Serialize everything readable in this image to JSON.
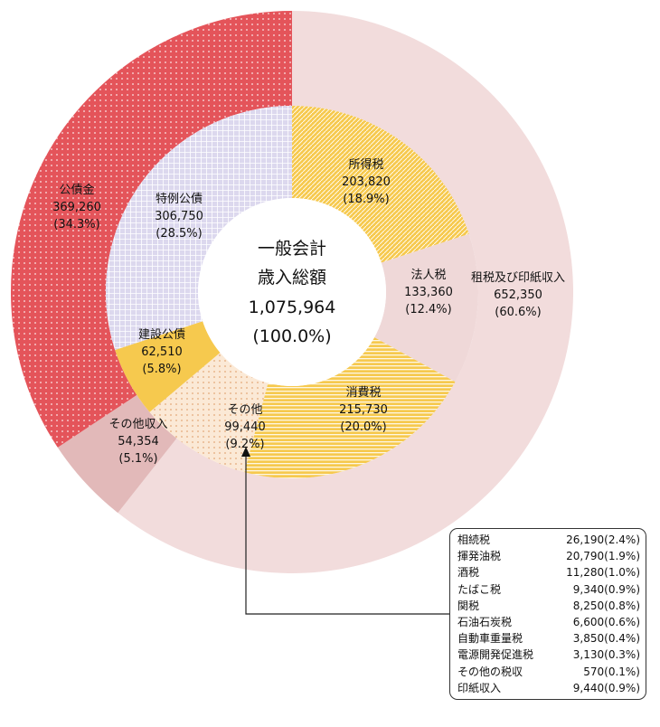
{
  "chart_data": {
    "type": "donut",
    "center": {
      "line1": "一般会計",
      "line2": "歳入総額",
      "line3": "1,075,964",
      "line4": "(100.0%)"
    },
    "outer_ring": [
      {
        "name": "租税及び印紙収入",
        "value_text": "652,350",
        "pct_text": "(60.6%)",
        "value": 652350,
        "percent": 60.6,
        "color": "#f2dcdc"
      },
      {
        "name": "その他収入",
        "value_text": "54,354",
        "pct_text": "(5.1%)",
        "value": 54354,
        "percent": 5.1,
        "color": "#e2b9b9"
      },
      {
        "name": "公債金",
        "value_text": "369,260",
        "pct_text": "(34.3%)",
        "value": 369260,
        "percent": 34.3,
        "color": "#e4545a"
      }
    ],
    "inner_ring": [
      {
        "name": "所得税",
        "value_text": "203,820",
        "pct_text": "(18.9%)",
        "value": 203820,
        "percent": 18.9,
        "color": "#f6c94e"
      },
      {
        "name": "法人税",
        "value_text": "133,360",
        "pct_text": "(12.4%)",
        "value": 133360,
        "percent": 12.4,
        "color": "#efd8d8"
      },
      {
        "name": "消費税",
        "value_text": "215,730",
        "pct_text": "(20.0%)",
        "value": 215730,
        "percent": 20.0,
        "color": "#f6c94e"
      },
      {
        "name": "その他",
        "value_text": "99,440",
        "pct_text": "(9.2%)",
        "value": 99440,
        "percent": 9.2,
        "color": "#fbe9d6"
      },
      {
        "name": "建設公債",
        "value_text": "62,510",
        "pct_text": "(5.8%)",
        "value": 62510,
        "percent": 5.8,
        "color": "#f6c94e"
      },
      {
        "name": "特例公債",
        "value_text": "306,750",
        "pct_text": "(28.5%)",
        "value": 306750,
        "percent": 28.5,
        "color": "#dcd8ee"
      }
    ],
    "breakdown": [
      {
        "name": "相続税",
        "value_text": "26,190(2.4%)",
        "value": 26190,
        "percent": 2.4
      },
      {
        "name": "揮発油税",
        "value_text": "20,790(1.9%)",
        "value": 20790,
        "percent": 1.9
      },
      {
        "name": "酒税",
        "value_text": "11,280(1.0%)",
        "value": 11280,
        "percent": 1.0
      },
      {
        "name": "たばこ税",
        "value_text": "9,340(0.9%)",
        "value": 9340,
        "percent": 0.9
      },
      {
        "name": "関税",
        "value_text": "8,250(0.8%)",
        "value": 8250,
        "percent": 0.8
      },
      {
        "name": "石油石炭税",
        "value_text": "6,600(0.6%)",
        "value": 6600,
        "percent": 0.6
      },
      {
        "name": "自動車重量税",
        "value_text": "3,850(0.4%)",
        "value": 3850,
        "percent": 0.4
      },
      {
        "name": "電源開発促進税",
        "value_text": "3,130(0.3%)",
        "value": 3130,
        "percent": 0.3
      },
      {
        "name": "その他の税収",
        "value_text": "570(0.1%)",
        "value": 570,
        "percent": 0.1
      },
      {
        "name": "印紙収入",
        "value_text": "9,440(0.9%)",
        "value": 9440,
        "percent": 0.9
      }
    ]
  }
}
